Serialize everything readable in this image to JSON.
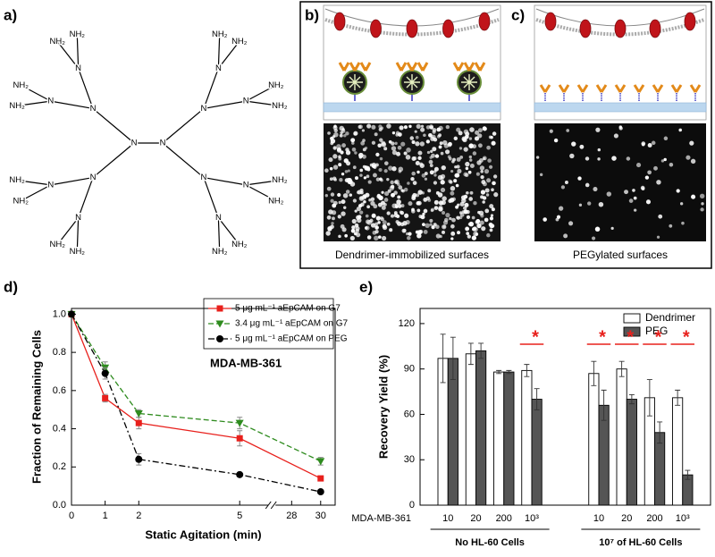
{
  "panel_labels": [
    "a)",
    "b)",
    "c)",
    "d)",
    "e)"
  ],
  "structure": {
    "core": [
      "N",
      "N"
    ],
    "branch_atoms": [
      "N",
      "N",
      "N",
      "N",
      "N",
      "N",
      "N",
      "N",
      "N",
      "N",
      "N",
      "N"
    ],
    "terminals": [
      "NH₂",
      "NH₂",
      "NH₂",
      "NH₂",
      "NH₂",
      "NH₂",
      "NH₂",
      "NH₂",
      "NH₂",
      "NH₂",
      "NH₂",
      "NH₂",
      "NH₂",
      "NH₂",
      "NH₂",
      "NH₂"
    ]
  },
  "captions": [
    "Dendrimer-immobilized surfaces",
    "PEGylated surfaces"
  ],
  "chart_data": [
    {
      "type": "line",
      "xlabel": "Static Agitation (min)",
      "ylabel": "Fraction of Remaining Cells",
      "annotation": "MDA-MB-361",
      "x": [
        0,
        1,
        2,
        5,
        30
      ],
      "xlim": [
        0,
        31
      ],
      "x_break": [
        5.8,
        27
      ],
      "xticks": [
        0,
        1,
        2,
        5,
        28,
        30
      ],
      "ylim": [
        0,
        1.03
      ],
      "yticks": [
        {
          "value": 0,
          "label": "0.0"
        },
        0.2,
        0.4,
        0.6,
        0.8,
        {
          "value": 1,
          "label": "1.0"
        }
      ],
      "legend": "upper right",
      "series": [
        {
          "name": "5 μg mL⁻¹ aEpCAM on G7",
          "color": "#e8201c",
          "linestyle": "solid",
          "marker": "square",
          "values": [
            1.0,
            0.56,
            0.43,
            0.35,
            0.14
          ],
          "errors": [
            0,
            0.02,
            0.03,
            0.04,
            0.01
          ]
        },
        {
          "name": "3.4 μg mL⁻¹ aEpCAM on G7",
          "color": "#2e8b1e",
          "linestyle": "dashed",
          "marker": "triangle-down",
          "values": [
            1.0,
            0.72,
            0.48,
            0.43,
            0.23
          ],
          "errors": [
            0,
            0.03,
            0.02,
            0.03,
            0.02
          ]
        },
        {
          "name": "5 μg mL⁻¹ aEpCAM on PEG",
          "color": "#000000",
          "linestyle": "dashdot",
          "marker": "circle",
          "values": [
            1.0,
            0.69,
            0.24,
            0.16,
            0.07
          ],
          "errors": [
            0,
            0.03,
            0.03,
            0.01,
            0.01
          ]
        }
      ]
    },
    {
      "type": "bar",
      "ylabel": "Recovery Yield (%)",
      "xlabel": "MDA-MB-361",
      "groups": [
        {
          "name": "No HL-60 Cells",
          "categories": [
            "10",
            "20",
            "200",
            "10³"
          ]
        },
        {
          "name": "10⁷ of HL-60 Cells",
          "categories": [
            "10",
            "20",
            "200",
            "10³"
          ]
        }
      ],
      "significance": [
        null,
        null,
        null,
        "*",
        "*",
        "*",
        "*",
        "*"
      ],
      "significance_color": "#e8201c",
      "ylim": [
        0,
        130
      ],
      "yticks": [
        0,
        30,
        60,
        90,
        120
      ],
      "legend": "upper right",
      "series": [
        {
          "name": "Dendrimer",
          "color": "#ffffff",
          "values": [
            97,
            100,
            88,
            89,
            87,
            90,
            71,
            71
          ],
          "errors": [
            16,
            7,
            1,
            4,
            8,
            5,
            12,
            5
          ]
        },
        {
          "name": "PEG",
          "color": "#555555",
          "values": [
            97,
            102,
            88,
            70,
            66,
            70,
            48,
            20
          ],
          "errors": [
            14,
            5,
            1,
            7,
            10,
            3,
            7,
            3
          ]
        }
      ]
    }
  ]
}
